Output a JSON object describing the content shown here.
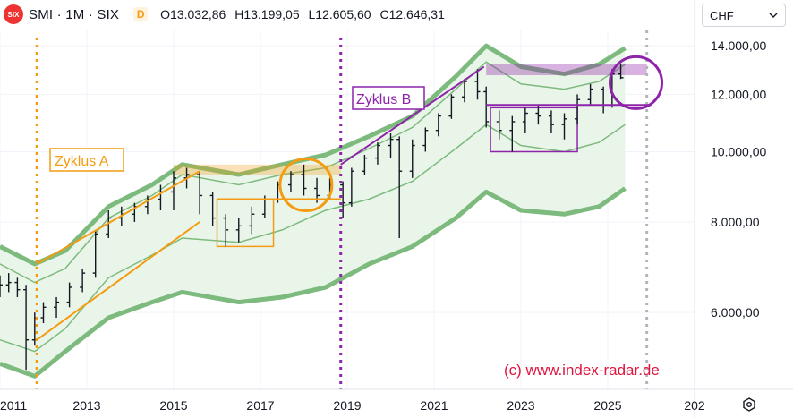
{
  "header": {
    "logo_text": "SIX",
    "symbol": "SMI · 1M · SIX",
    "data_badge": "D",
    "ohlc": [
      "O13.032,86",
      "H13.199,05",
      "L12.605,60",
      "C12.646,31"
    ]
  },
  "currency_select": {
    "value": "CHF"
  },
  "watermark": "(c) www.index-radar.de",
  "annotations": {
    "zyklus_a": "Zyklus A",
    "zyklus_b": "Zyklus B"
  },
  "colors": {
    "orange": "#f39c12",
    "purple": "#8e24aa",
    "band": "#7dba7d",
    "band_fill": "#eaf5ea",
    "bar": "#131722",
    "watermark": "#e0143c"
  },
  "chart_data": {
    "type": "bar",
    "title": "",
    "xlabel": "",
    "ylabel": "",
    "x_ticks": [
      "2011",
      "2013",
      "2015",
      "2017",
      "2019",
      "2021",
      "2023",
      "2025",
      "202"
    ],
    "y_ticks": [
      "6.000,00",
      "8.000,00",
      "10.000,00",
      "12.000,00",
      "14.000,00"
    ],
    "ylim": [
      4700,
      14700
    ],
    "xlim": [
      2011.0,
      2027.0
    ],
    "grid": true,
    "scale": "log",
    "ohlc_approx": [
      [
        2011.0,
        6400,
        6750,
        6300,
        6550
      ],
      [
        2011.2,
        6550,
        6800,
        6400,
        6600
      ],
      [
        2011.4,
        6600,
        6700,
        6300,
        6450
      ],
      [
        2011.6,
        6450,
        6550,
        5000,
        5500
      ],
      [
        2011.8,
        5500,
        6000,
        5400,
        5900
      ],
      [
        2012.0,
        5900,
        6200,
        5800,
        6100
      ],
      [
        2012.3,
        6100,
        6300,
        5900,
        6200
      ],
      [
        2012.6,
        6200,
        6600,
        6100,
        6500
      ],
      [
        2012.9,
        6500,
        6900,
        6400,
        6800
      ],
      [
        2013.2,
        6800,
        7800,
        6700,
        7700
      ],
      [
        2013.5,
        7700,
        8300,
        7600,
        8100
      ],
      [
        2013.8,
        8100,
        8400,
        7900,
        8200
      ],
      [
        2014.1,
        8200,
        8500,
        8000,
        8400
      ],
      [
        2014.4,
        8400,
        8700,
        8200,
        8600
      ],
      [
        2014.7,
        8600,
        9000,
        8300,
        8800
      ],
      [
        2015.0,
        8800,
        9400,
        8300,
        9200
      ],
      [
        2015.3,
        9200,
        9500,
        8900,
        9300
      ],
      [
        2015.6,
        9300,
        9400,
        8200,
        8700
      ],
      [
        2015.9,
        8700,
        8800,
        7900,
        8100
      ],
      [
        2016.2,
        8100,
        8200,
        7400,
        7800
      ],
      [
        2016.5,
        7800,
        8100,
        7500,
        7900
      ],
      [
        2016.8,
        7900,
        8400,
        7700,
        8200
      ],
      [
        2017.1,
        8200,
        8700,
        8100,
        8600
      ],
      [
        2017.4,
        8600,
        9100,
        8500,
        9000
      ],
      [
        2017.7,
        9000,
        9400,
        8800,
        9300
      ],
      [
        2018.0,
        9300,
        9600,
        8700,
        8900
      ],
      [
        2018.3,
        8900,
        9200,
        8500,
        8700
      ],
      [
        2018.6,
        8700,
        9200,
        8600,
        9000
      ],
      [
        2018.9,
        9000,
        9100,
        8100,
        8500
      ],
      [
        2019.1,
        8500,
        9500,
        8400,
        9400
      ],
      [
        2019.4,
        9400,
        9900,
        9300,
        9800
      ],
      [
        2019.7,
        9800,
        10300,
        9600,
        10200
      ],
      [
        2020.0,
        10200,
        10600,
        9800,
        10400
      ],
      [
        2020.2,
        10400,
        10500,
        7600,
        9400
      ],
      [
        2020.5,
        9400,
        10400,
        9200,
        10200
      ],
      [
        2020.8,
        10200,
        10800,
        10000,
        10700
      ],
      [
        2021.1,
        10700,
        11300,
        10500,
        11200
      ],
      [
        2021.4,
        11200,
        12000,
        11100,
        11900
      ],
      [
        2021.7,
        11900,
        12600,
        11700,
        12500
      ],
      [
        2022.0,
        12500,
        13000,
        11800,
        12100
      ],
      [
        2022.2,
        12100,
        12300,
        10800,
        11000
      ],
      [
        2022.5,
        11000,
        11400,
        10400,
        10700
      ],
      [
        2022.8,
        10700,
        11200,
        10000,
        11000
      ],
      [
        2023.1,
        11000,
        11500,
        10600,
        11300
      ],
      [
        2023.4,
        11300,
        11600,
        10900,
        11200
      ],
      [
        2023.7,
        11200,
        11400,
        10600,
        10900
      ],
      [
        2024.0,
        10900,
        11300,
        10400,
        11100
      ],
      [
        2024.3,
        11100,
        12000,
        10900,
        11800
      ],
      [
        2024.6,
        11800,
        12400,
        11600,
        12200
      ],
      [
        2024.9,
        12200,
        12300,
        11300,
        11600
      ],
      [
        2025.1,
        11600,
        13000,
        11500,
        12800
      ],
      [
        2025.3,
        12800,
        13200,
        12600,
        12650
      ]
    ],
    "bands": {
      "outer_top": [
        [
          2011.0,
          7400
        ],
        [
          2011.8,
          7000
        ],
        [
          2012.5,
          7300
        ],
        [
          2013.5,
          8400
        ],
        [
          2014.5,
          9000
        ],
        [
          2015.2,
          9600
        ],
        [
          2016.5,
          9300
        ],
        [
          2017.5,
          9600
        ],
        [
          2018.5,
          9900
        ],
        [
          2019.5,
          10500
        ],
        [
          2020.5,
          11200
        ],
        [
          2021.5,
          12700
        ],
        [
          2022.2,
          14000
        ],
        [
          2023.0,
          13100
        ],
        [
          2024.0,
          12800
        ],
        [
          2024.8,
          13200
        ],
        [
          2025.4,
          13900
        ]
      ],
      "upper": [
        [
          2011.0,
          7000
        ],
        [
          2011.8,
          6600
        ],
        [
          2012.5,
          6900
        ],
        [
          2013.5,
          8100
        ],
        [
          2014.5,
          8700
        ],
        [
          2015.2,
          9300
        ],
        [
          2016.5,
          9000
        ],
        [
          2017.5,
          9300
        ],
        [
          2018.5,
          9500
        ],
        [
          2019.5,
          10100
        ],
        [
          2020.5,
          10800
        ],
        [
          2021.5,
          12200
        ],
        [
          2022.2,
          13300
        ],
        [
          2023.0,
          12400
        ],
        [
          2024.0,
          12200
        ],
        [
          2024.8,
          12500
        ],
        [
          2025.4,
          13200
        ]
      ],
      "lower": [
        [
          2011.0,
          5500
        ],
        [
          2011.8,
          5300
        ],
        [
          2012.5,
          5700
        ],
        [
          2013.5,
          6700
        ],
        [
          2014.5,
          7200
        ],
        [
          2015.2,
          7600
        ],
        [
          2016.5,
          7500
        ],
        [
          2017.5,
          7800
        ],
        [
          2018.5,
          8300
        ],
        [
          2019.5,
          8600
        ],
        [
          2020.5,
          9100
        ],
        [
          2021.5,
          10100
        ],
        [
          2022.2,
          10900
        ],
        [
          2023.0,
          10200
        ],
        [
          2024.0,
          10000
        ],
        [
          2024.8,
          10300
        ],
        [
          2025.4,
          10900
        ]
      ],
      "outer_bottom": [
        [
          2011.0,
          5100
        ],
        [
          2011.8,
          4900
        ],
        [
          2012.5,
          5300
        ],
        [
          2013.5,
          5900
        ],
        [
          2014.5,
          6200
        ],
        [
          2015.2,
          6400
        ],
        [
          2016.5,
          6200
        ],
        [
          2017.5,
          6300
        ],
        [
          2018.5,
          6500
        ],
        [
          2019.5,
          7000
        ],
        [
          2020.5,
          7400
        ],
        [
          2021.5,
          8100
        ],
        [
          2022.2,
          8800
        ],
        [
          2023.0,
          8300
        ],
        [
          2024.0,
          8200
        ],
        [
          2024.8,
          8400
        ],
        [
          2025.4,
          8900
        ]
      ]
    },
    "cycle_lines": [
      2011.85,
      2018.85
    ],
    "forecast_line": 2025.9,
    "zones": [
      {
        "color": "orange",
        "kind": "fill",
        "x": [
          2015.0,
          2018.85
        ],
        "y": [
          9300,
          9600
        ]
      },
      {
        "color": "orange",
        "kind": "box",
        "x": [
          2016.0,
          2017.3
        ],
        "y": [
          7400,
          8600
        ]
      },
      {
        "color": "purple",
        "kind": "fill",
        "x": [
          2022.2,
          2025.9
        ],
        "y": [
          12750,
          13200
        ]
      },
      {
        "color": "purple",
        "kind": "box",
        "x": [
          2022.3,
          2024.3
        ],
        "y": [
          10000,
          11500
        ]
      }
    ],
    "trend_lines": [
      {
        "color": "orange",
        "from": [
          2011.85,
          7000
        ],
        "to": [
          2015.6,
          9400
        ]
      },
      {
        "color": "orange",
        "from": [
          2011.85,
          5500
        ],
        "to": [
          2015.6,
          8000
        ]
      },
      {
        "color": "purple",
        "from": [
          2018.85,
          9600
        ],
        "to": [
          2022.15,
          13100
        ]
      }
    ],
    "h_lines": [
      {
        "color": "purple",
        "x": [
          2022.2,
          2026.0
        ],
        "y": 11600
      },
      {
        "color": "orange",
        "x": [
          2016.0,
          2018.85
        ],
        "y": 8600
      }
    ],
    "circles": [
      {
        "color": "orange",
        "x": 2018.05,
        "y": 9000
      },
      {
        "color": "purple",
        "x": 2025.65,
        "y": 12450
      }
    ]
  }
}
